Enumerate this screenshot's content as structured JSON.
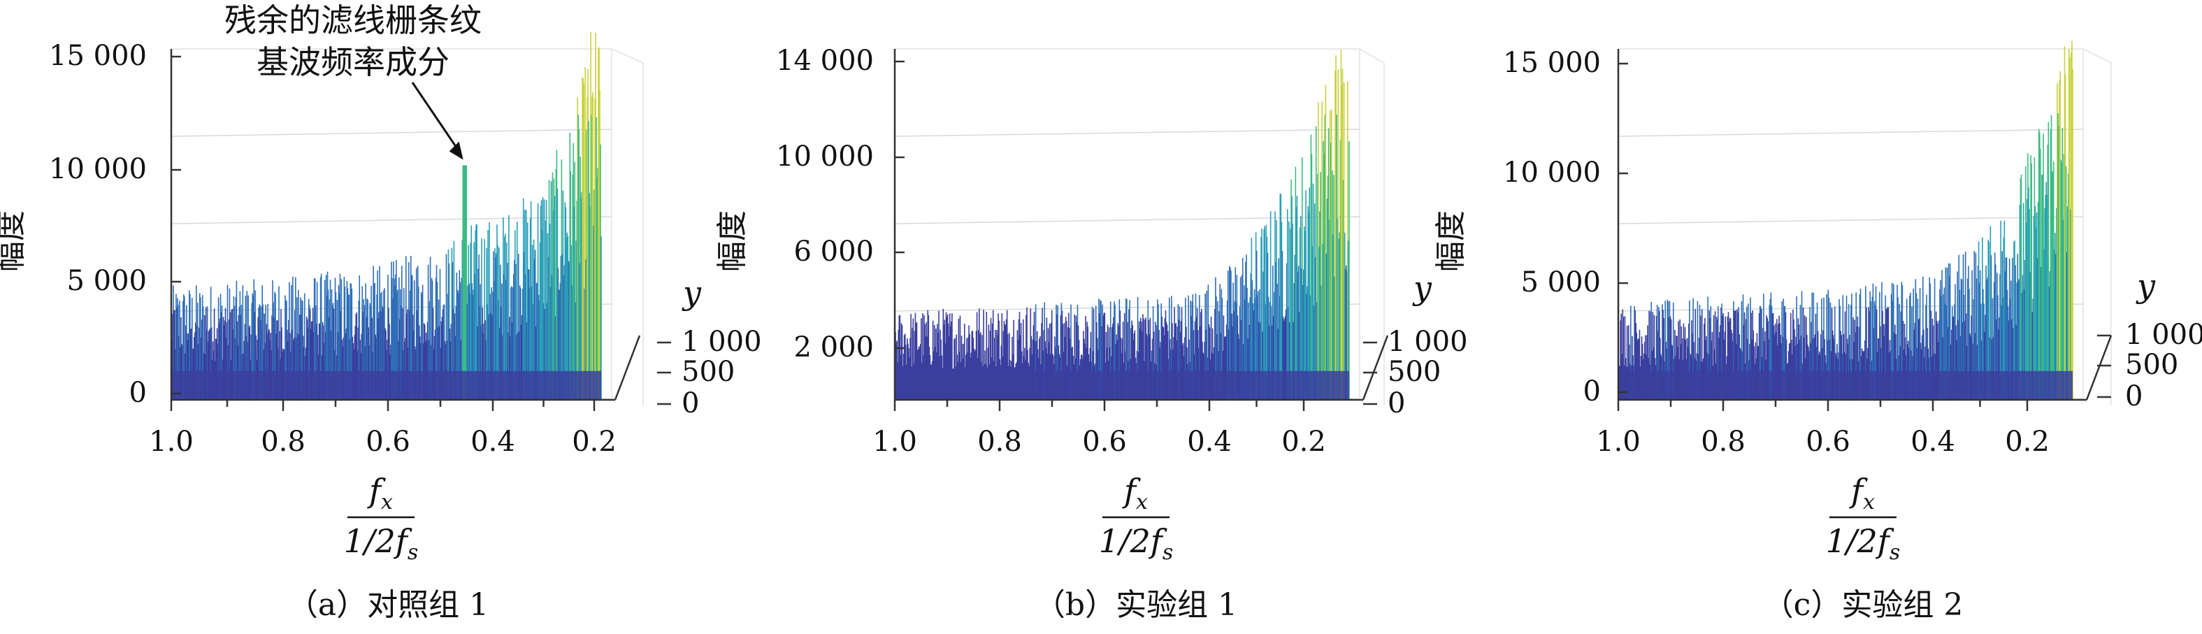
{
  "chart_data": [
    {
      "type": "surface",
      "caption": "（a）对照组 1",
      "zlabel": "幅度",
      "ylabel": "y",
      "xlabel_num": "f",
      "xlabel_num_sub": "x",
      "xlabel_den": "1/2f",
      "xlabel_den_sub": "s",
      "x_ticks": [
        "1.0",
        "0.8",
        "0.6",
        "0.4",
        "0.2"
      ],
      "y_ticks": [
        "1 000",
        "500",
        "0"
      ],
      "z_ticks": [
        "15 000",
        "10 000",
        "5 000",
        "0"
      ],
      "x_range": [
        1.0,
        0.15
      ],
      "y_range": [
        0,
        1000
      ],
      "z_range": [
        0,
        15000
      ],
      "annotation": {
        "line1": "残余的滤线栅条纹",
        "line2": "基波频率成分",
        "x": 0.42,
        "z": 10200
      },
      "profile": [
        {
          "x": 1.0,
          "z": 4500
        },
        {
          "x": 0.8,
          "z": 4800
        },
        {
          "x": 0.6,
          "z": 5300
        },
        {
          "x": 0.45,
          "z": 6200
        },
        {
          "x": 0.42,
          "z": 7000
        },
        {
          "x": 0.35,
          "z": 7300
        },
        {
          "x": 0.28,
          "z": 8500
        },
        {
          "x": 0.22,
          "z": 10500
        },
        {
          "x": 0.19,
          "z": 12500
        },
        {
          "x": 0.17,
          "z": 15000
        }
      ]
    },
    {
      "type": "surface",
      "caption": "（b）实验组 1",
      "zlabel": "幅度",
      "ylabel": "y",
      "xlabel_num": "f",
      "xlabel_num_sub": "x",
      "xlabel_den": "1/2f",
      "xlabel_den_sub": "s",
      "x_ticks": [
        "1.0",
        "0.8",
        "0.6",
        "0.4",
        "0.2"
      ],
      "y_ticks": [
        "1 000",
        "500",
        "0"
      ],
      "z_ticks": [
        "14 000",
        "10 000",
        "6 000",
        "2 000"
      ],
      "x_range": [
        1.0,
        0.15
      ],
      "y_range": [
        0,
        1000
      ],
      "z_range": [
        0,
        15000
      ],
      "profile": [
        {
          "x": 1.0,
          "z": 3500
        },
        {
          "x": 0.8,
          "z": 3800
        },
        {
          "x": 0.6,
          "z": 4000
        },
        {
          "x": 0.45,
          "z": 4300
        },
        {
          "x": 0.38,
          "z": 5200
        },
        {
          "x": 0.3,
          "z": 7500
        },
        {
          "x": 0.24,
          "z": 10000
        },
        {
          "x": 0.2,
          "z": 12500
        },
        {
          "x": 0.17,
          "z": 14800
        }
      ]
    },
    {
      "type": "surface",
      "caption": "（c）实验组 2",
      "zlabel": "幅度",
      "ylabel": "y",
      "xlabel_num": "f",
      "xlabel_num_sub": "x",
      "xlabel_den": "1/2f",
      "xlabel_den_sub": "s",
      "x_ticks": [
        "1.0",
        "0.8",
        "0.6",
        "0.4",
        "0.2"
      ],
      "y_ticks": [
        "1 000",
        "500",
        "0"
      ],
      "z_ticks": [
        "15 000",
        "10 000",
        "5 000",
        "0"
      ],
      "x_range": [
        1.0,
        0.15
      ],
      "y_range": [
        0,
        1000
      ],
      "z_range": [
        0,
        15000
      ],
      "profile": [
        {
          "x": 1.0,
          "z": 3800
        },
        {
          "x": 0.8,
          "z": 4100
        },
        {
          "x": 0.6,
          "z": 4400
        },
        {
          "x": 0.45,
          "z": 4800
        },
        {
          "x": 0.38,
          "z": 5500
        },
        {
          "x": 0.3,
          "z": 7000
        },
        {
          "x": 0.24,
          "z": 9500
        },
        {
          "x": 0.2,
          "z": 12000
        },
        {
          "x": 0.17,
          "z": 15000
        }
      ]
    }
  ],
  "colors": {
    "low": "#3b3f9e",
    "mid1": "#2f6fb8",
    "mid2": "#2aa0b8",
    "mid3": "#3dbb84",
    "high": "#c8d23a"
  }
}
